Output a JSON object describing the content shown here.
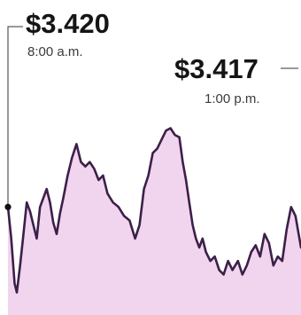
{
  "chart_data": {
    "type": "area",
    "title": "",
    "xlabel": "",
    "ylabel": "",
    "colors": {
      "line": "#3c1f4a",
      "fill": "#f1d5ee",
      "leader": "#333333"
    },
    "grid": false,
    "legend": "none",
    "x_unit": "hours from 8:00 a.m.",
    "ylim": [
      3.409,
      3.423
    ],
    "series": [
      {
        "values": [
          [
            0.0,
            3.4138
          ],
          [
            0.03,
            3.4124
          ],
          [
            0.06,
            3.4104
          ],
          [
            0.08,
            3.41
          ],
          [
            0.11,
            3.4112
          ],
          [
            0.14,
            3.4126
          ],
          [
            0.17,
            3.414
          ],
          [
            0.2,
            3.4136
          ],
          [
            0.23,
            3.413
          ],
          [
            0.26,
            3.4124
          ],
          [
            0.29,
            3.4138
          ],
          [
            0.32,
            3.4142
          ],
          [
            0.35,
            3.4146
          ],
          [
            0.38,
            3.414
          ],
          [
            0.41,
            3.4131
          ],
          [
            0.44,
            3.4126
          ],
          [
            0.47,
            3.4135
          ],
          [
            0.5,
            3.4142
          ],
          [
            0.54,
            3.4152
          ],
          [
            0.58,
            3.416
          ],
          [
            0.62,
            3.4166
          ],
          [
            0.66,
            3.4158
          ],
          [
            0.7,
            3.4156
          ],
          [
            0.74,
            3.4158
          ],
          [
            0.78,
            3.4155
          ],
          [
            0.82,
            3.415
          ],
          [
            0.86,
            3.4152
          ],
          [
            0.9,
            3.4144
          ],
          [
            0.95,
            3.414
          ],
          [
            1.0,
            3.4138
          ],
          [
            1.05,
            3.4134
          ],
          [
            1.1,
            3.4132
          ],
          [
            1.15,
            3.4124
          ],
          [
            1.19,
            3.413
          ],
          [
            1.23,
            3.4146
          ],
          [
            1.27,
            3.4152
          ],
          [
            1.31,
            3.4162
          ],
          [
            1.35,
            3.4164
          ],
          [
            1.39,
            3.4168
          ],
          [
            1.43,
            3.4172
          ],
          [
            1.47,
            3.4173
          ],
          [
            1.51,
            3.417
          ],
          [
            1.55,
            3.4169
          ],
          [
            1.58,
            3.4158
          ],
          [
            1.61,
            3.415
          ],
          [
            1.64,
            3.414
          ],
          [
            1.67,
            3.413
          ],
          [
            1.7,
            3.4124
          ],
          [
            1.73,
            3.412
          ],
          [
            1.76,
            3.4124
          ],
          [
            1.79,
            3.4118
          ],
          [
            1.83,
            3.4114
          ],
          [
            1.87,
            3.4116
          ],
          [
            1.91,
            3.411
          ],
          [
            1.95,
            3.4108
          ],
          [
            1.99,
            3.4114
          ],
          [
            2.03,
            3.411
          ],
          [
            2.08,
            3.4114
          ],
          [
            2.12,
            3.4108
          ],
          [
            2.16,
            3.4112
          ],
          [
            2.2,
            3.4118
          ],
          [
            2.24,
            3.4121
          ],
          [
            2.28,
            3.4116
          ],
          [
            2.32,
            3.4126
          ],
          [
            2.36,
            3.4122
          ],
          [
            2.4,
            3.4112
          ],
          [
            2.44,
            3.4116
          ],
          [
            2.48,
            3.4114
          ],
          [
            2.52,
            3.4128
          ],
          [
            2.56,
            3.4138
          ],
          [
            2.6,
            3.4134
          ],
          [
            2.65,
            3.412
          ]
        ]
      }
    ],
    "annotations": [
      {
        "value": "$3.420",
        "time": "8:00 a.m."
      },
      {
        "value": "$3.417",
        "time": "1:00 p.m."
      }
    ]
  }
}
